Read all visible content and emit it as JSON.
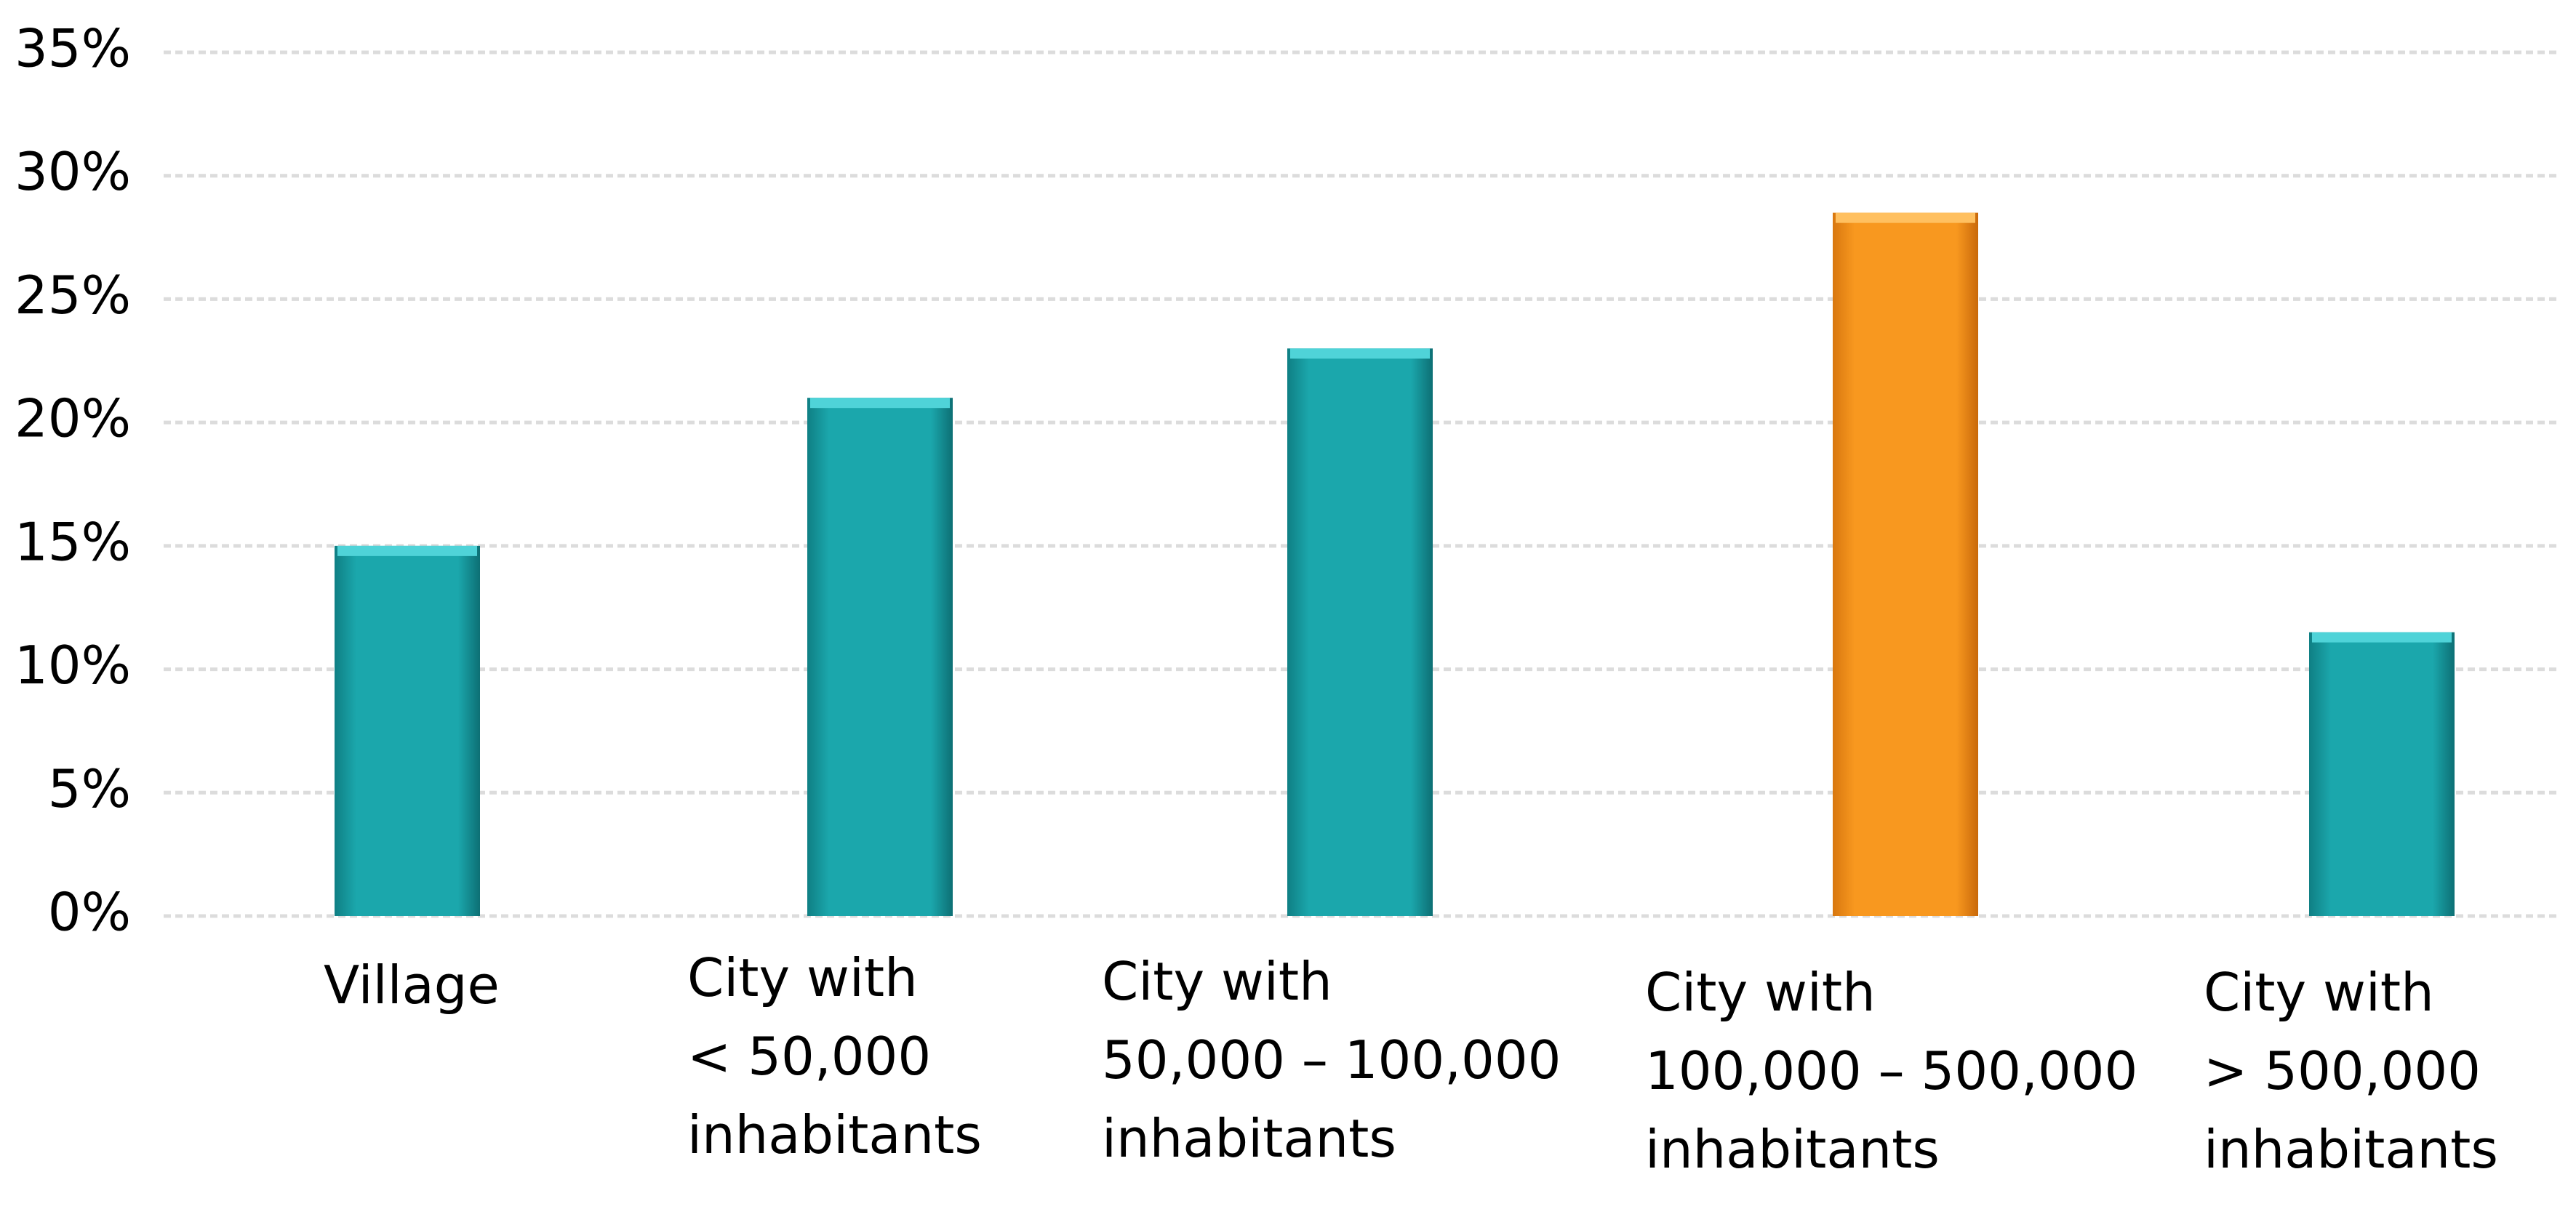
{
  "chart_data": {
    "type": "bar",
    "title": "",
    "xlabel": "",
    "ylabel": "",
    "ylim": [
      0,
      35
    ],
    "yticks": [
      0,
      5,
      10,
      15,
      20,
      25,
      30,
      35
    ],
    "ytick_labels": [
      "0%",
      "5%",
      "10%",
      "15%",
      "20%",
      "25%",
      "30%",
      "35%"
    ],
    "grid": true,
    "categories": [
      [
        "Village"
      ],
      [
        "City with",
        "< 50,000",
        "inhabitants"
      ],
      [
        "City with",
        "50,000 – 100,000",
        "inhabitants"
      ],
      [
        "City with",
        "100,000 – 500,000",
        "inhabitants"
      ],
      [
        "City with",
        "> 500,000",
        "inhabitants"
      ]
    ],
    "values": [
      15,
      21,
      23,
      28.5,
      11.5
    ],
    "bar_colors": [
      "#1a9ea3",
      "#1a9ea3",
      "#1a9ea3",
      "#f7941d",
      "#1a9ea3"
    ],
    "highlight_index": 3
  },
  "colors": {
    "teal": "#1a9ea3",
    "teal_light": "#4fd3d8",
    "orange": "#f7941d",
    "orange_light": "#ffc060",
    "grid": "#dcdcdc"
  }
}
